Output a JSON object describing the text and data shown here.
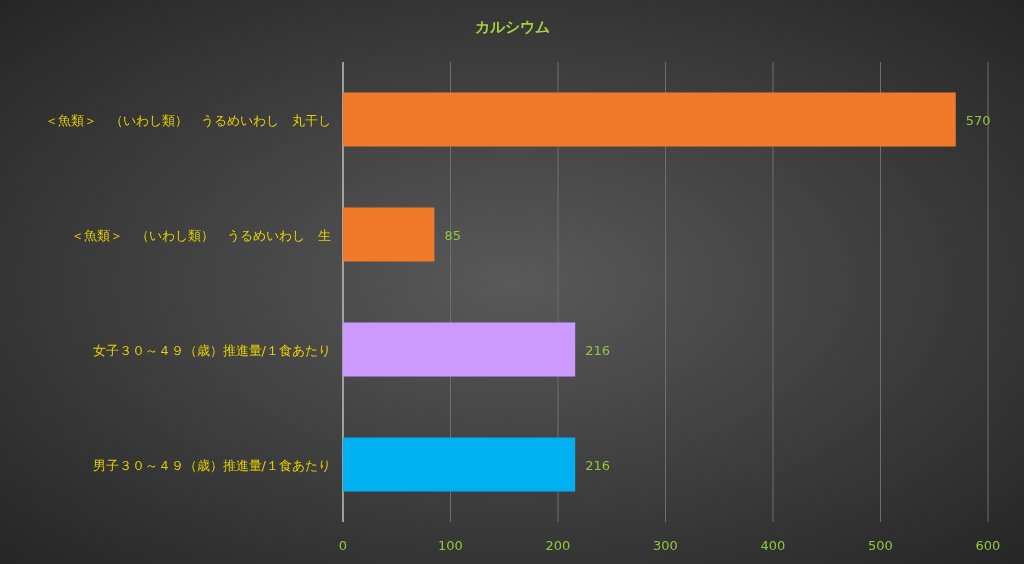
{
  "chart_data": {
    "type": "bar",
    "orientation": "horizontal",
    "title": "カルシウム",
    "categories": [
      "＜魚類＞　（いわし類）　うるめいわし　丸干し",
      "＜魚類＞　（いわし類）　うるめいわし　生",
      "女子３０～４９（歳）推進量/１食あたり",
      "男子３０～４９（歳）推進量/１食あたり"
    ],
    "values": [
      570,
      85,
      216,
      216
    ],
    "colors": [
      "#f07a2a",
      "#f07a2a",
      "#cc99ff",
      "#00b0f0"
    ],
    "xlim": [
      0,
      600
    ],
    "xticks": [
      0,
      100,
      200,
      300,
      400,
      500,
      600
    ],
    "grid": "x",
    "data_labels": true
  }
}
